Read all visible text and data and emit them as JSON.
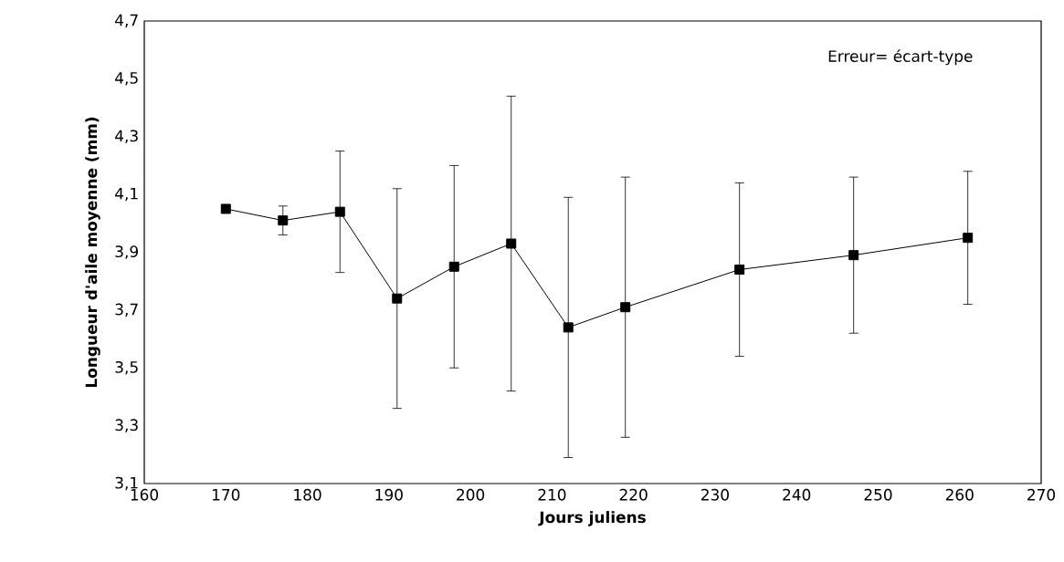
{
  "chart_data": {
    "type": "line",
    "xlabel": "Jours juliens",
    "ylabel": "Longueur d'aile moyenne (mm)",
    "annotations": [
      "Erreur= écart-type"
    ],
    "x": [
      170,
      177,
      184,
      191,
      198,
      205,
      212,
      219,
      233,
      247,
      261
    ],
    "values": [
      4.05,
      4.01,
      4.04,
      3.74,
      3.85,
      3.93,
      3.64,
      3.71,
      3.84,
      3.89,
      3.95
    ],
    "errors": [
      null,
      0.05,
      0.21,
      0.38,
      0.35,
      0.51,
      0.45,
      0.45,
      0.3,
      0.27,
      0.23
    ],
    "color": "#000000",
    "marker": "square",
    "line_style": "solid",
    "xlim": [
      160,
      270
    ],
    "xticks": [
      160,
      170,
      180,
      190,
      200,
      210,
      220,
      230,
      240,
      250,
      260,
      270
    ],
    "ylim": [
      3.1,
      4.7
    ],
    "yticks": [
      {
        "value": 3.1,
        "label": "3,1"
      },
      {
        "value": 3.3,
        "label": "3,3"
      },
      {
        "value": 3.5,
        "label": "3,5"
      },
      {
        "value": 3.7,
        "label": "3,7"
      },
      {
        "value": 3.9,
        "label": "3,9"
      },
      {
        "value": 4.1,
        "label": "4,1"
      },
      {
        "value": 4.3,
        "label": "4,3"
      },
      {
        "value": 4.5,
        "label": "4,5"
      },
      {
        "value": 4.7,
        "label": "4,7"
      }
    ]
  }
}
